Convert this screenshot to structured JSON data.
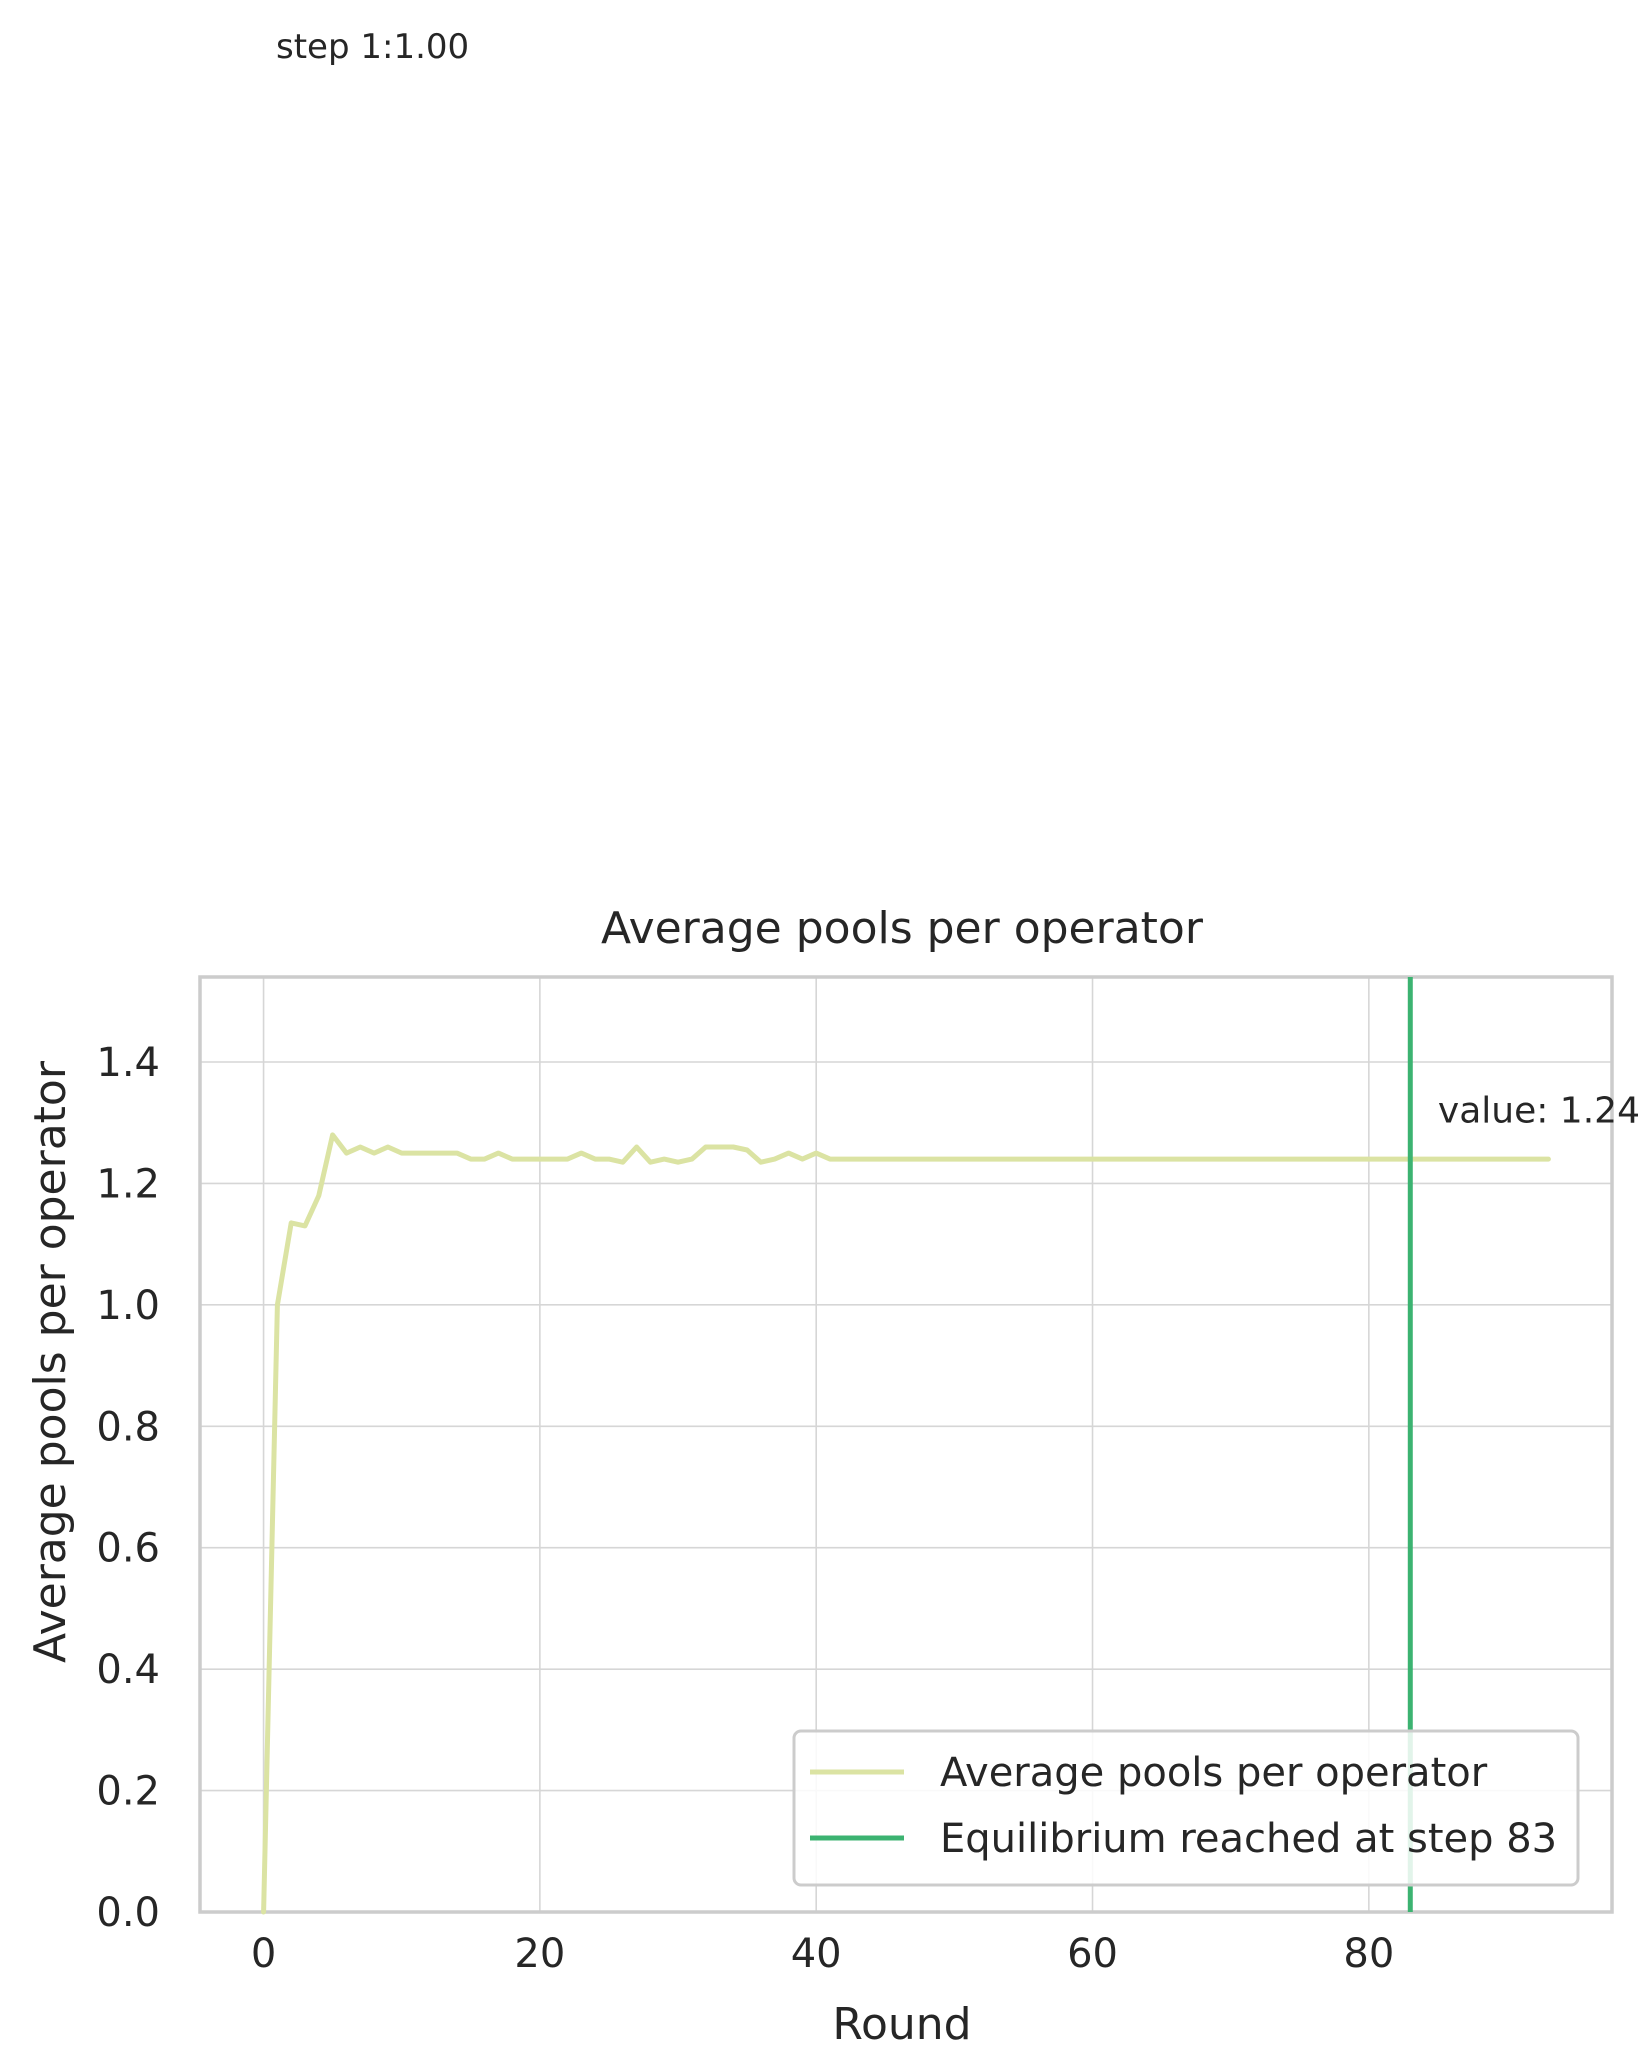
{
  "corner_label": "step 1:1.00",
  "chart_data": {
    "type": "line",
    "title": "Average pools per operator",
    "xlabel": "Round",
    "ylabel": "Average pools per operator",
    "xlim": [
      -4.6,
      97.6
    ],
    "ylim": [
      0,
      1.54
    ],
    "xticks": [
      0,
      20,
      40,
      60,
      80
    ],
    "xtick_labels": [
      "0",
      "20",
      "40",
      "60",
      "80"
    ],
    "yticks": [
      0.0,
      0.2,
      0.4,
      0.6,
      0.8,
      1.0,
      1.2,
      1.4
    ],
    "ytick_labels": [
      "0.0",
      "0.2",
      "0.4",
      "0.6",
      "0.8",
      "1.0",
      "1.2",
      "1.4"
    ],
    "grid": true,
    "legend_position": "lower-right",
    "series": [
      {
        "name": "Average pools per operator",
        "color": "#dbe3a3",
        "x": [
          0,
          1,
          2,
          3,
          4,
          5,
          6,
          7,
          8,
          9,
          10,
          11,
          12,
          13,
          14,
          15,
          16,
          17,
          18,
          19,
          20,
          21,
          22,
          23,
          24,
          25,
          26,
          27,
          28,
          29,
          30,
          31,
          32,
          33,
          34,
          35,
          36,
          37,
          38,
          39,
          40,
          41,
          42,
          43,
          44,
          45,
          46,
          47,
          48,
          49,
          50,
          51,
          52,
          53,
          54,
          55,
          56,
          57,
          58,
          59,
          60,
          61,
          62,
          63,
          64,
          65,
          66,
          67,
          68,
          69,
          70,
          71,
          72,
          73,
          74,
          75,
          76,
          77,
          78,
          79,
          80,
          81,
          82,
          83,
          84,
          85,
          86,
          87,
          88,
          89,
          90,
          91,
          92,
          93
        ],
        "values": [
          0.0,
          1.0,
          1.135,
          1.13,
          1.18,
          1.28,
          1.25,
          1.26,
          1.25,
          1.26,
          1.25,
          1.25,
          1.25,
          1.25,
          1.25,
          1.24,
          1.24,
          1.25,
          1.24,
          1.24,
          1.24,
          1.24,
          1.24,
          1.25,
          1.24,
          1.24,
          1.235,
          1.26,
          1.235,
          1.24,
          1.235,
          1.24,
          1.26,
          1.26,
          1.26,
          1.255,
          1.235,
          1.24,
          1.25,
          1.24,
          1.25,
          1.24,
          1.24,
          1.24,
          1.24,
          1.24,
          1.24,
          1.24,
          1.24,
          1.24,
          1.24,
          1.24,
          1.24,
          1.24,
          1.24,
          1.24,
          1.24,
          1.24,
          1.24,
          1.24,
          1.24,
          1.24,
          1.24,
          1.24,
          1.24,
          1.24,
          1.24,
          1.24,
          1.24,
          1.24,
          1.24,
          1.24,
          1.24,
          1.24,
          1.24,
          1.24,
          1.24,
          1.24,
          1.24,
          1.24,
          1.24,
          1.24,
          1.24,
          1.24,
          1.24,
          1.24,
          1.24,
          1.24,
          1.24,
          1.24,
          1.24,
          1.24,
          1.24,
          1.24
        ]
      }
    ],
    "vline": {
      "name": "Equilibrium reached at step 83",
      "x": 83,
      "color": "#3cb371"
    },
    "annotation": {
      "text": "value: 1.24",
      "x": 85,
      "y": 1.3
    }
  }
}
